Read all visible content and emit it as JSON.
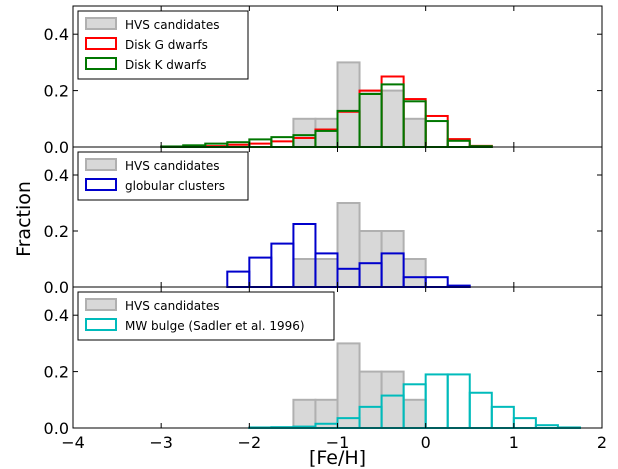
{
  "chart_data": [
    {
      "type": "histogram",
      "panel": "top",
      "xlim": [
        -4,
        2
      ],
      "ylim": [
        0,
        0.5
      ],
      "bin_width": 0.25,
      "yticks": [
        0.0,
        0.2,
        0.4
      ],
      "legend": {
        "placement": "top-left"
      },
      "series": [
        {
          "name": "HVS candidates",
          "style": "filled",
          "color": "#b0b0b0",
          "fill": "#d8d8d8",
          "bins": [
            [
              -1.375,
              0.1
            ],
            [
              -1.125,
              0.1
            ],
            [
              -0.875,
              0.3
            ],
            [
              -0.625,
              0.2
            ],
            [
              -0.375,
              0.2
            ],
            [
              -0.125,
              0.1
            ]
          ]
        },
        {
          "name": "Disk G dwarfs",
          "style": "step",
          "color": "#ff0000",
          "bins": [
            [
              -2.625,
              0.001
            ],
            [
              -2.375,
              0.003
            ],
            [
              -2.125,
              0.008
            ],
            [
              -1.875,
              0.012
            ],
            [
              -1.625,
              0.02
            ],
            [
              -1.375,
              0.032
            ],
            [
              -1.125,
              0.062
            ],
            [
              -0.875,
              0.125
            ],
            [
              -0.625,
              0.2
            ],
            [
              -0.375,
              0.25
            ],
            [
              -0.125,
              0.17
            ],
            [
              0.125,
              0.11
            ],
            [
              0.375,
              0.028
            ],
            [
              0.625,
              0.004
            ]
          ]
        },
        {
          "name": "Disk K dwarfs",
          "style": "step",
          "color": "#007700",
          "bins": [
            [
              -2.875,
              0.002
            ],
            [
              -2.625,
              0.006
            ],
            [
              -2.375,
              0.012
            ],
            [
              -2.125,
              0.017
            ],
            [
              -1.875,
              0.027
            ],
            [
              -1.625,
              0.035
            ],
            [
              -1.375,
              0.042
            ],
            [
              -1.125,
              0.057
            ],
            [
              -0.875,
              0.128
            ],
            [
              -0.625,
              0.188
            ],
            [
              -0.375,
              0.222
            ],
            [
              -0.125,
              0.162
            ],
            [
              0.125,
              0.092
            ],
            [
              0.375,
              0.022
            ],
            [
              0.625,
              0.003
            ]
          ]
        }
      ]
    },
    {
      "type": "histogram",
      "panel": "middle",
      "xlim": [
        -4,
        2
      ],
      "ylim": [
        0,
        0.5
      ],
      "bin_width": 0.25,
      "yticks": [
        0.0,
        0.2,
        0.4
      ],
      "ylabel": "Fraction",
      "legend": {
        "placement": "top-left"
      },
      "series": [
        {
          "name": "HVS candidates",
          "style": "filled",
          "color": "#b0b0b0",
          "fill": "#d8d8d8",
          "bins": [
            [
              -1.375,
              0.1
            ],
            [
              -1.125,
              0.1
            ],
            [
              -0.875,
              0.3
            ],
            [
              -0.625,
              0.2
            ],
            [
              -0.375,
              0.2
            ],
            [
              -0.125,
              0.1
            ]
          ]
        },
        {
          "name": "globular clusters",
          "style": "step",
          "color": "#0000cc",
          "bins": [
            [
              -2.125,
              0.055
            ],
            [
              -1.875,
              0.105
            ],
            [
              -1.625,
              0.155
            ],
            [
              -1.375,
              0.225
            ],
            [
              -1.125,
              0.12
            ],
            [
              -0.875,
              0.065
            ],
            [
              -0.625,
              0.085
            ],
            [
              -0.375,
              0.12
            ],
            [
              -0.125,
              0.035
            ],
            [
              0.125,
              0.035
            ],
            [
              0.375,
              0.005
            ]
          ]
        }
      ]
    },
    {
      "type": "histogram",
      "panel": "bottom",
      "xlim": [
        -4,
        2
      ],
      "ylim": [
        0,
        0.5
      ],
      "bin_width": 0.25,
      "xticks": [
        -4,
        -3,
        -2,
        -1,
        0,
        1,
        2
      ],
      "yticks": [
        0.0,
        0.2,
        0.4
      ],
      "xlabel": "[Fe/H]",
      "legend": {
        "placement": "top-left"
      },
      "series": [
        {
          "name": "HVS candidates",
          "style": "filled",
          "color": "#b0b0b0",
          "fill": "#d8d8d8",
          "bins": [
            [
              -1.375,
              0.1
            ],
            [
              -1.125,
              0.1
            ],
            [
              -0.875,
              0.3
            ],
            [
              -0.625,
              0.2
            ],
            [
              -0.375,
              0.2
            ],
            [
              -0.125,
              0.1
            ]
          ]
        },
        {
          "name": "MW bulge (Sadler et al. 1996)",
          "style": "step",
          "color": "#00bbbb",
          "bins": [
            [
              -1.875,
              0.002
            ],
            [
              -1.625,
              0.003
            ],
            [
              -1.375,
              0.005
            ],
            [
              -1.125,
              0.015
            ],
            [
              -0.875,
              0.035
            ],
            [
              -0.625,
              0.075
            ],
            [
              -0.375,
              0.115
            ],
            [
              -0.125,
              0.155
            ],
            [
              0.125,
              0.19
            ],
            [
              0.375,
              0.19
            ],
            [
              0.625,
              0.125
            ],
            [
              0.875,
              0.075
            ],
            [
              1.125,
              0.035
            ],
            [
              1.375,
              0.01
            ],
            [
              1.625,
              0.002
            ]
          ]
        }
      ]
    }
  ]
}
